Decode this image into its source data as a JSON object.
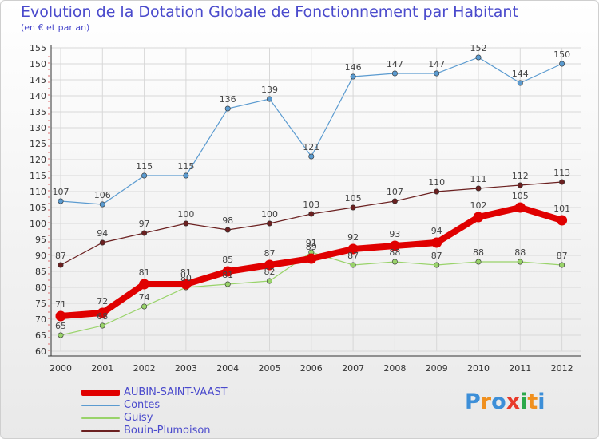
{
  "chart_data": {
    "type": "line",
    "title": "Evolution de la Dotation Globale de Fonctionnement par Habitant",
    "subtitle": "(en € et par an)",
    "categories": [
      "2000",
      "2001",
      "2002",
      "2003",
      "2004",
      "2005",
      "2006",
      "2007",
      "2008",
      "2009",
      "2010",
      "2011",
      "2012"
    ],
    "ylim": [
      60,
      155
    ],
    "yticks": [
      60,
      65,
      70,
      75,
      80,
      85,
      90,
      95,
      100,
      105,
      110,
      115,
      120,
      125,
      130,
      135,
      140,
      145,
      150,
      155
    ],
    "grid": true,
    "legend_position": "bottom-left",
    "series": [
      {
        "name": "AUBIN-SAINT-VAAST",
        "color": "#e00000",
        "highlight": true,
        "values": [
          71,
          72,
          81,
          81,
          85,
          87,
          89,
          92,
          93,
          94,
          102,
          105,
          101
        ]
      },
      {
        "name": "Contes",
        "color": "#5b9bd0",
        "values": [
          107,
          106,
          115,
          115,
          136,
          139,
          121,
          146,
          147,
          147,
          152,
          144,
          150
        ]
      },
      {
        "name": "Guisy",
        "color": "#99d36a",
        "values": [
          65,
          68,
          74,
          80,
          81,
          82,
          91,
          87,
          88,
          87,
          88,
          88,
          87
        ]
      },
      {
        "name": "Bouin-Plumoison",
        "color": "#6b2020",
        "values": [
          87,
          94,
          97,
          100,
          98,
          100,
          103,
          105,
          107,
          110,
          111,
          112,
          113
        ]
      }
    ]
  },
  "logo": {
    "letters": [
      {
        "ch": "P",
        "color": "#3d8fd8"
      },
      {
        "ch": "r",
        "color": "#f0901e"
      },
      {
        "ch": "o",
        "color": "#3d8fd8"
      },
      {
        "ch": "x",
        "color": "#e83a2a"
      },
      {
        "ch": "i",
        "color": "#2aa84a"
      },
      {
        "ch": "t",
        "color": "#f0901e"
      },
      {
        "ch": "i",
        "color": "#3d8fd8"
      }
    ]
  }
}
